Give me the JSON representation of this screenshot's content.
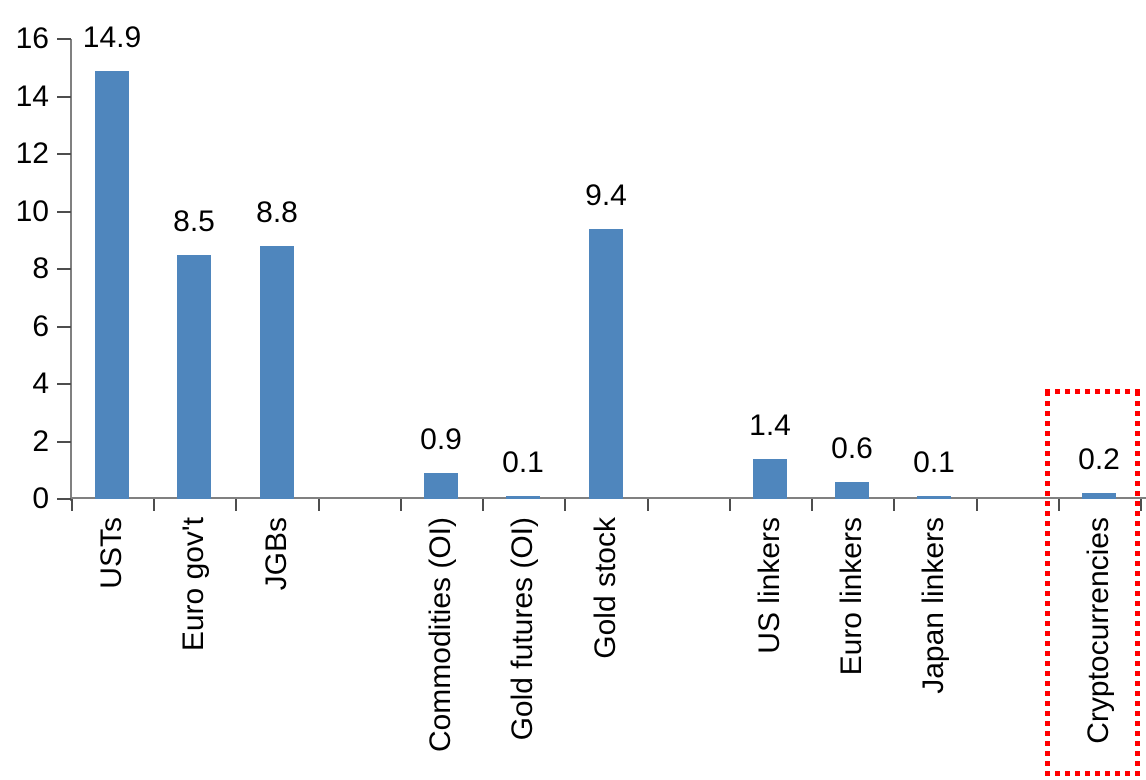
{
  "chart_data": {
    "type": "bar",
    "title": "",
    "xlabel": "",
    "ylabel": "",
    "grid": false,
    "legend": false,
    "categories": [
      "USTs",
      "Euro gov't",
      "JGBs",
      "Commodities (OI)",
      "Gold futures (OI)",
      "Gold stock",
      "US linkers",
      "Euro linkers",
      "Japan linkers",
      "Cryptocurrencies"
    ],
    "values": [
      14.9,
      8.5,
      8.8,
      0.9,
      0.1,
      9.4,
      1.4,
      0.6,
      0.1,
      0.2
    ],
    "bars": [
      {
        "label": "USTs",
        "value": 14.9,
        "value_label": "14.9",
        "highlighted": false
      },
      {
        "label": "Euro gov't",
        "value": 8.5,
        "value_label": "8.5",
        "highlighted": false
      },
      {
        "label": "JGBs",
        "value": 8.8,
        "value_label": "8.8",
        "highlighted": false
      },
      {
        "label": "Commodities (OI)",
        "value": 0.9,
        "value_label": "0.9",
        "highlighted": false
      },
      {
        "label": "Gold futures (OI)",
        "value": 0.1,
        "value_label": "0.1",
        "highlighted": false
      },
      {
        "label": "Gold stock",
        "value": 9.4,
        "value_label": "9.4",
        "highlighted": false
      },
      {
        "label": "US linkers",
        "value": 1.4,
        "value_label": "1.4",
        "highlighted": false
      },
      {
        "label": "Euro linkers",
        "value": 0.6,
        "value_label": "0.6",
        "highlighted": false
      },
      {
        "label": "Japan linkers",
        "value": 0.1,
        "value_label": "0.1",
        "highlighted": false
      },
      {
        "label": "Cryptocurrencies",
        "value": 0.2,
        "value_label": "0.2",
        "highlighted": true
      }
    ],
    "groups": [
      [
        "USTs",
        "Euro gov't",
        "JGBs"
      ],
      [
        "Commodities (OI)",
        "Gold futures (OI)",
        "Gold stock"
      ],
      [
        "US linkers",
        "Euro linkers",
        "Japan linkers"
      ],
      [
        "Cryptocurrencies"
      ]
    ],
    "gap_after_indices": [
      2,
      5,
      8
    ],
    "y_axis": {
      "min": 0,
      "max": 16,
      "tick_interval": 2,
      "tick_labels": [
        "0",
        "2",
        "4",
        "6",
        "8",
        "10",
        "12",
        "14",
        "16"
      ]
    },
    "ylim": [
      0,
      16
    ],
    "label_rotation_degrees": -90,
    "colors": {
      "bar": "#4f86bd",
      "highlight_box": "#ff0000",
      "axis_line": "#808080",
      "tick_mark": "#4d4d4d",
      "text": "#000000",
      "background": "#ffffff"
    },
    "highlight": {
      "label": "Cryptocurrencies",
      "style": "red-dotted-box"
    }
  }
}
